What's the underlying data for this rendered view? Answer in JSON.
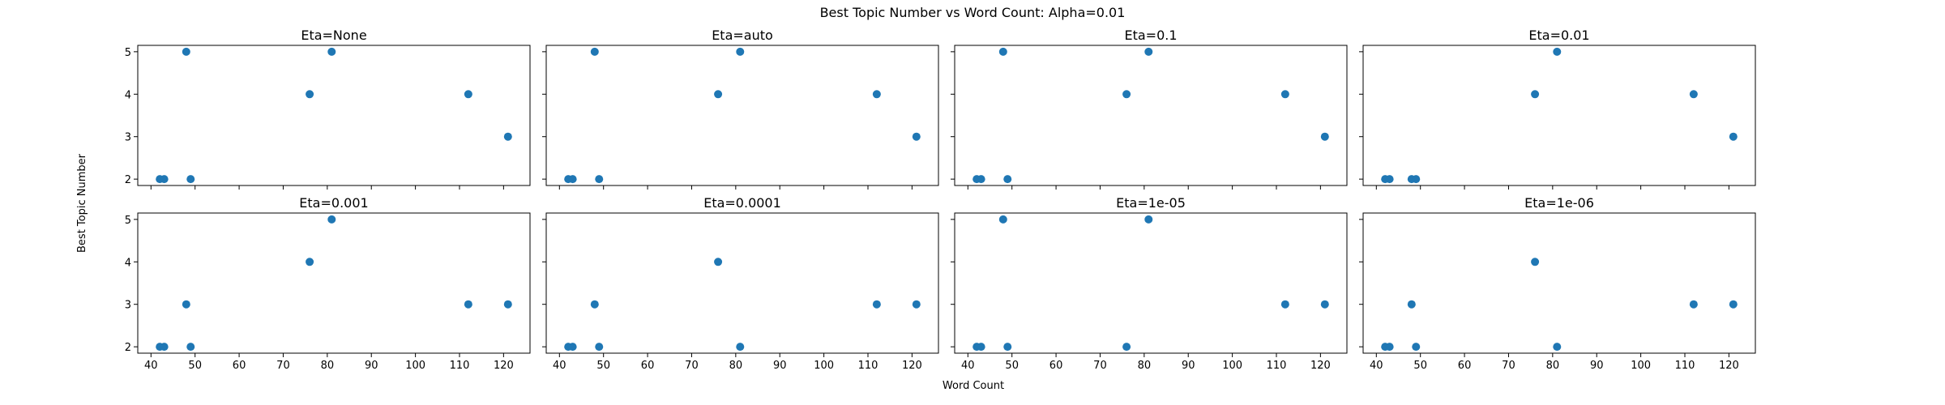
{
  "figure": {
    "suptitle": "Best Topic Number vs Word Count: Alpha=0.01",
    "xlabel": "Word Count",
    "ylabel": "Best Topic Number"
  },
  "chart_data": [
    {
      "type": "scatter",
      "title": "Eta=None",
      "x": [
        42,
        43,
        48,
        49,
        76,
        81,
        112,
        121
      ],
      "y": [
        2,
        2,
        5,
        2,
        4,
        5,
        4,
        3
      ],
      "xlim": [
        37,
        126
      ],
      "ylim": [
        1.85,
        5.15
      ],
      "xticks": [
        40,
        50,
        60,
        70,
        80,
        90,
        100,
        110,
        120
      ],
      "yticks": [
        2,
        3,
        4,
        5
      ],
      "color": "#1f77b4"
    },
    {
      "type": "scatter",
      "title": "Eta=auto",
      "x": [
        42,
        43,
        48,
        49,
        76,
        81,
        112,
        121
      ],
      "y": [
        2,
        2,
        5,
        2,
        4,
        5,
        4,
        3
      ],
      "xlim": [
        37,
        126
      ],
      "ylim": [
        1.85,
        5.15
      ],
      "xticks": [
        40,
        50,
        60,
        70,
        80,
        90,
        100,
        110,
        120
      ],
      "yticks": [
        2,
        3,
        4,
        5
      ],
      "color": "#1f77b4"
    },
    {
      "type": "scatter",
      "title": "Eta=0.1",
      "x": [
        42,
        43,
        48,
        49,
        76,
        81,
        112,
        121
      ],
      "y": [
        2,
        2,
        5,
        2,
        4,
        5,
        4,
        3
      ],
      "xlim": [
        37,
        126
      ],
      "ylim": [
        1.85,
        5.15
      ],
      "xticks": [
        40,
        50,
        60,
        70,
        80,
        90,
        100,
        110,
        120
      ],
      "yticks": [
        2,
        3,
        4,
        5
      ],
      "color": "#1f77b4"
    },
    {
      "type": "scatter",
      "title": "Eta=0.01",
      "x": [
        42,
        43,
        48,
        49,
        76,
        81,
        112,
        121
      ],
      "y": [
        2,
        2,
        2,
        2,
        4,
        5,
        4,
        3
      ],
      "xlim": [
        37,
        126
      ],
      "ylim": [
        1.85,
        5.15
      ],
      "xticks": [
        40,
        50,
        60,
        70,
        80,
        90,
        100,
        110,
        120
      ],
      "yticks": [
        2,
        3,
        4,
        5
      ],
      "color": "#1f77b4"
    },
    {
      "type": "scatter",
      "title": "Eta=0.001",
      "x": [
        42,
        43,
        48,
        49,
        76,
        81,
        112,
        121
      ],
      "y": [
        2,
        2,
        3,
        2,
        4,
        5,
        3,
        3
      ],
      "xlim": [
        37,
        126
      ],
      "ylim": [
        1.85,
        5.15
      ],
      "xticks": [
        40,
        50,
        60,
        70,
        80,
        90,
        100,
        110,
        120
      ],
      "yticks": [
        2,
        3,
        4,
        5
      ],
      "color": "#1f77b4"
    },
    {
      "type": "scatter",
      "title": "Eta=0.0001",
      "x": [
        42,
        43,
        48,
        49,
        76,
        81,
        112,
        121
      ],
      "y": [
        2,
        2,
        3,
        2,
        4,
        2,
        3,
        3
      ],
      "xlim": [
        37,
        126
      ],
      "ylim": [
        1.85,
        5.15
      ],
      "xticks": [
        40,
        50,
        60,
        70,
        80,
        90,
        100,
        110,
        120
      ],
      "yticks": [
        2,
        3,
        4,
        5
      ],
      "color": "#1f77b4"
    },
    {
      "type": "scatter",
      "title": "Eta=1e-05",
      "x": [
        42,
        43,
        48,
        49,
        76,
        81,
        112,
        121
      ],
      "y": [
        2,
        2,
        5,
        2,
        2,
        5,
        3,
        3
      ],
      "xlim": [
        37,
        126
      ],
      "ylim": [
        1.85,
        5.15
      ],
      "xticks": [
        40,
        50,
        60,
        70,
        80,
        90,
        100,
        110,
        120
      ],
      "yticks": [
        2,
        3,
        4,
        5
      ],
      "color": "#1f77b4"
    },
    {
      "type": "scatter",
      "title": "Eta=1e-06",
      "x": [
        42,
        43,
        48,
        49,
        76,
        81,
        112,
        121
      ],
      "y": [
        2,
        2,
        3,
        2,
        4,
        2,
        3,
        3
      ],
      "xlim": [
        37,
        126
      ],
      "ylim": [
        1.85,
        5.15
      ],
      "xticks": [
        40,
        50,
        60,
        70,
        80,
        90,
        100,
        110,
        120
      ],
      "yticks": [
        2,
        3,
        4,
        5
      ],
      "color": "#1f77b4"
    }
  ]
}
